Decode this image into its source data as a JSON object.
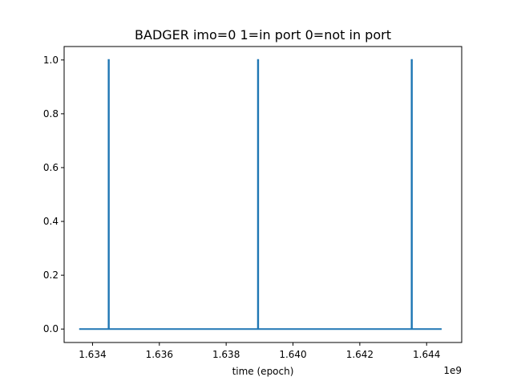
{
  "chart_data": {
    "type": "line",
    "title": "BADGER imo=0 1=in port 0=not in port",
    "xlabel": "time (epoch)",
    "ylabel": "",
    "x_offset_label": "1e9",
    "xlim": [
      1.63315,
      1.64505
    ],
    "ylim": [
      -0.05,
      1.05
    ],
    "xticks": [
      1.634,
      1.636,
      1.638,
      1.64,
      1.642,
      1.644
    ],
    "xtick_labels": [
      "1.634",
      "1.636",
      "1.638",
      "1.640",
      "1.642",
      "1.644"
    ],
    "yticks": [
      0.0,
      0.2,
      0.4,
      0.6,
      0.8,
      1.0
    ],
    "ytick_labels": [
      "0.0",
      "0.2",
      "0.4",
      "0.6",
      "0.8",
      "1.0"
    ],
    "grid": false,
    "series": [
      {
        "color": "#1f77b4",
        "x": [
          1.6336,
          1.63448,
          1.63448,
          1.63449,
          1.63449,
          1.63895,
          1.63895,
          1.63896,
          1.63896,
          1.64355,
          1.64355,
          1.64356,
          1.64356,
          1.64445
        ],
        "y": [
          0,
          0,
          1,
          1,
          0,
          0,
          1,
          1,
          0,
          0,
          1,
          1,
          0,
          0
        ]
      }
    ]
  }
}
